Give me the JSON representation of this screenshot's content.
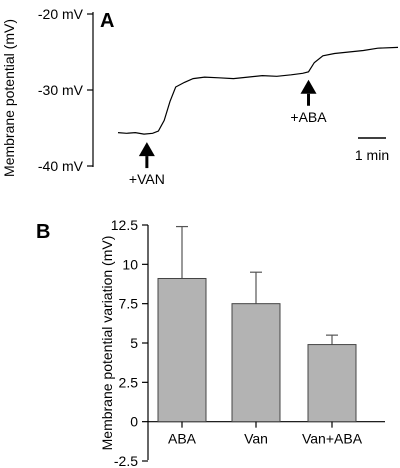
{
  "chart_data": [
    {
      "panel_label": "A",
      "type": "line",
      "ylabel": "Membrane potential (mV)",
      "ylim": [
        -40,
        -20
      ],
      "y_tick_labels": [
        "-20 mV",
        "-30 mV",
        "-40 mV"
      ],
      "y_ticks": [
        -20,
        -30,
        -40
      ],
      "xlim": [
        0,
        9.7
      ],
      "x": [
        0.0,
        0.3,
        0.6,
        0.9,
        1.2,
        1.4,
        1.6,
        1.8,
        2.0,
        2.3,
        2.6,
        3.0,
        3.5,
        4.0,
        4.5,
        5.0,
        5.5,
        6.0,
        6.4,
        6.6,
        6.8,
        7.1,
        7.5,
        8.0,
        8.5,
        9.0,
        9.7
      ],
      "y": [
        -35.6,
        -35.7,
        -35.6,
        -35.8,
        -35.7,
        -35.4,
        -34.0,
        -31.5,
        -29.6,
        -29.0,
        -28.5,
        -28.3,
        -28.4,
        -28.5,
        -28.3,
        -28.1,
        -28.2,
        -28.0,
        -27.8,
        -27.6,
        -26.4,
        -25.5,
        -25.2,
        -25.0,
        -24.8,
        -24.5,
        -24.4
      ],
      "annotations": [
        {
          "text": "+VAN",
          "x": 1.0
        },
        {
          "text": "+ABA",
          "x": 6.6
        }
      ],
      "scale_bar_label": "1 min",
      "scale_bar_minutes": 1,
      "grid": false
    },
    {
      "panel_label": "B",
      "type": "bar",
      "ylabel": "Membrane potential variation (mV)",
      "categories": [
        "ABA",
        "Van",
        "Van+ABA"
      ],
      "values": [
        9.1,
        7.5,
        4.9
      ],
      "errors": [
        3.3,
        2.0,
        0.6
      ],
      "ylim": [
        -2.5,
        12.5
      ],
      "y_ticks": [
        -2.5,
        0,
        2.5,
        5,
        7.5,
        10,
        12.5
      ],
      "y_tick_labels": [
        "-2.5",
        "0",
        "2.5",
        "5",
        "7.5",
        "10",
        "12.5"
      ],
      "bar_color": "#b3b3b3",
      "grid": false,
      "legend": "none"
    }
  ]
}
